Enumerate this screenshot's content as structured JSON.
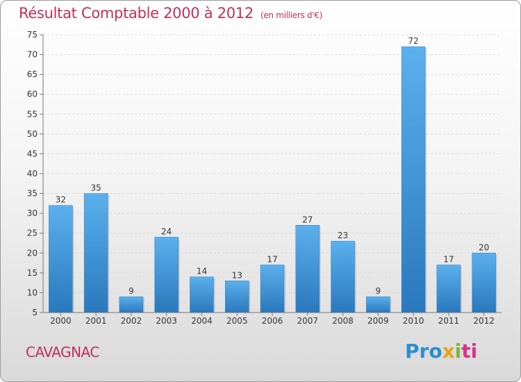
{
  "title": "Résultat Comptable 2000 à 2012",
  "subtitle": "(en milliers d'€)",
  "commune": "CAVAGNAC",
  "logo": {
    "p1": "Pro",
    "p2": "x",
    "p3": "i",
    "p4": "ti"
  },
  "chart_data": {
    "type": "bar",
    "categories": [
      "2000",
      "2001",
      "2002",
      "2003",
      "2004",
      "2005",
      "2006",
      "2007",
      "2008",
      "2009",
      "2010",
      "2011",
      "2012"
    ],
    "values": [
      32,
      35,
      9,
      24,
      14,
      13,
      17,
      27,
      23,
      9,
      72,
      17,
      20
    ],
    "ylim": [
      5,
      75
    ],
    "yticks": [
      5,
      10,
      15,
      20,
      25,
      30,
      35,
      40,
      45,
      50,
      55,
      60,
      65,
      70,
      75
    ],
    "grid": true,
    "bar_color": "#3d8fd6",
    "title_color": "#c0305a"
  }
}
